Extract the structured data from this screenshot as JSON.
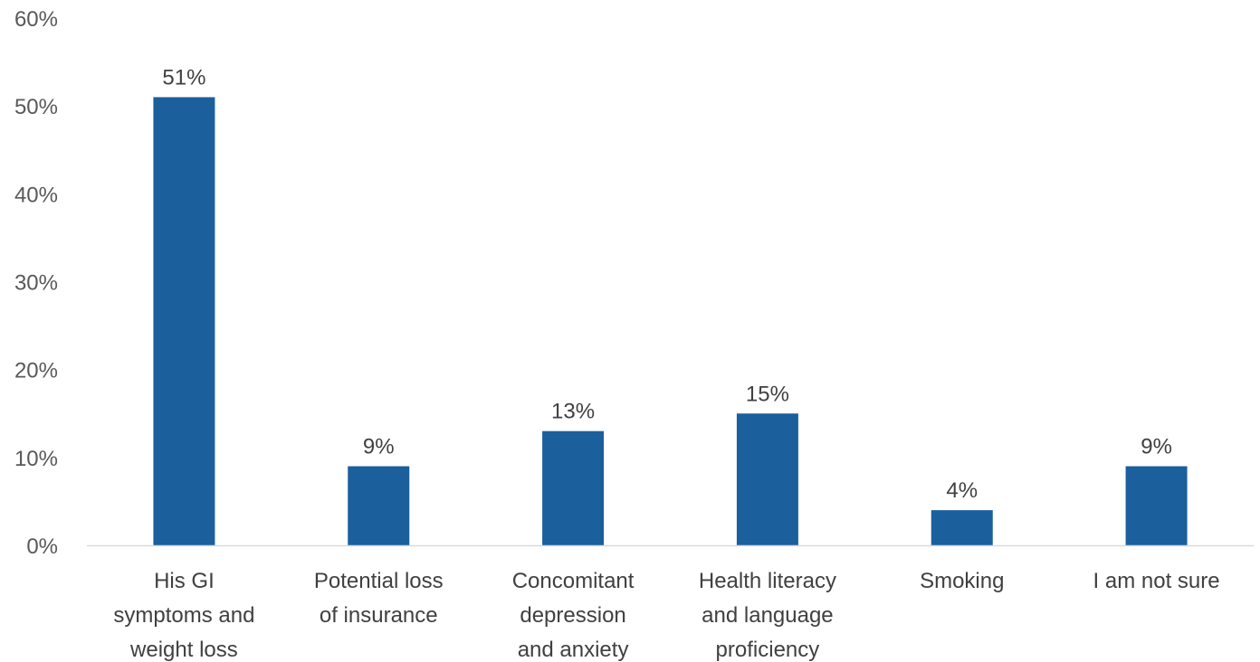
{
  "chart_data": {
    "type": "bar",
    "title": "",
    "xlabel": "",
    "ylabel": "",
    "ylim": [
      0,
      60
    ],
    "y_ticks": [
      0,
      10,
      20,
      30,
      40,
      50,
      60
    ],
    "y_tick_format": "percent",
    "grid": false,
    "categories": [
      [
        "His GI",
        "symptoms and",
        "weight loss"
      ],
      [
        "Potential loss",
        "of insurance"
      ],
      [
        "Concomitant",
        "depression",
        "and anxiety"
      ],
      [
        "Health literacy",
        "and language",
        "proficiency"
      ],
      [
        "Smoking"
      ],
      [
        "I am not sure"
      ]
    ],
    "values": [
      51,
      9,
      13,
      15,
      4,
      9
    ],
    "data_labels": [
      "51%",
      "9%",
      "13%",
      "15%",
      "4%",
      "9%"
    ],
    "colors": {
      "bar": "#1b5f9c",
      "axis": "#d9d9d9"
    }
  }
}
